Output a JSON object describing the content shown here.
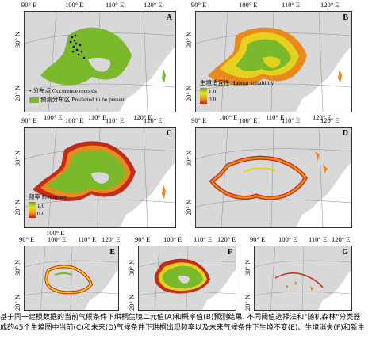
{
  "panels": [
    {
      "id": "A",
      "xticks": [
        "90° E",
        "100° E",
        "110° E",
        "120° E"
      ],
      "yticks": [
        "30° N",
        "20° N"
      ]
    },
    {
      "id": "B",
      "xticks": [
        "90° E",
        "100° E",
        "110° E",
        "120° E"
      ],
      "yticks": [
        "30° N",
        "20° N"
      ]
    },
    {
      "id": "C",
      "xticks": [
        "90° E",
        "100° E",
        "110° E",
        "120° E"
      ],
      "yticks": [
        "30° N",
        "20° N"
      ]
    },
    {
      "id": "D",
      "xticks": [
        "90° E",
        "100° E",
        "110° E",
        "120° E"
      ],
      "yticks": [
        "30° N",
        "20° N"
      ]
    },
    {
      "id": "E",
      "xticks": [
        "90° E",
        "100° E",
        "110° E",
        "120° E"
      ],
      "yticks": [
        "30° N",
        "20° N"
      ]
    },
    {
      "id": "F",
      "xticks": [
        "90° E",
        "100° E",
        "110° E",
        "120° E"
      ],
      "yticks": [
        "30° N",
        "20° N"
      ]
    },
    {
      "id": "G",
      "xticks": [
        "90° E",
        "100° E",
        "110° E",
        "120° E"
      ],
      "yticks": [
        "30° N",
        "20° N"
      ]
    }
  ],
  "legend_a": {
    "occurrence": "分布点 Occurence records",
    "predicted": "预测分布区 Predicted to be present"
  },
  "legend_b": {
    "title": "生境适宜性 Habitat suitability",
    "max": "1.0",
    "min": "0.0"
  },
  "legend_c": {
    "title": "频率 Frequency",
    "max": "1.0",
    "min": "0.0"
  },
  "caption": {
    "line1": "基于同一建模数据的当前气候条件下珙桐生境二元值(A)和概率值(B)预测结果. 不同阈值选择法和\"随机森林\"分类器",
    "line2": "成的45个生境图中当前(C)和未来(D)气候条件下珙桐出现频率以及未来气候条件下生境不变(E)、生境消失(F)和新生"
  },
  "colors": {
    "land": "#d8d8d8",
    "green": "#7ab82c",
    "yellow": "#e6d21e",
    "orange": "#e88a1e",
    "red": "#c42a1a",
    "sea": "#ffffff"
  }
}
